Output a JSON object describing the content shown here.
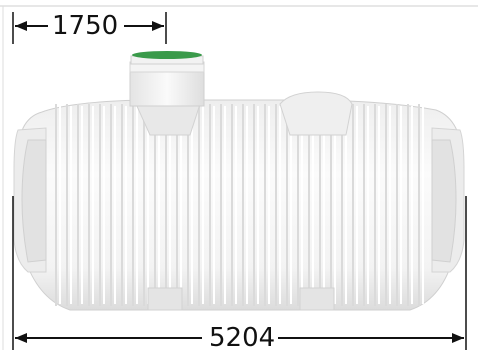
{
  "dimensions": {
    "riser_offset": "1750",
    "overall_length": "5204"
  },
  "colors": {
    "tank_body": "#f6f6f6",
    "tank_shadow": "#d9d9d9",
    "riser_lid": "#2e8b3e",
    "dimension_line": "#111111",
    "frame_line": "#cfcfcf"
  }
}
